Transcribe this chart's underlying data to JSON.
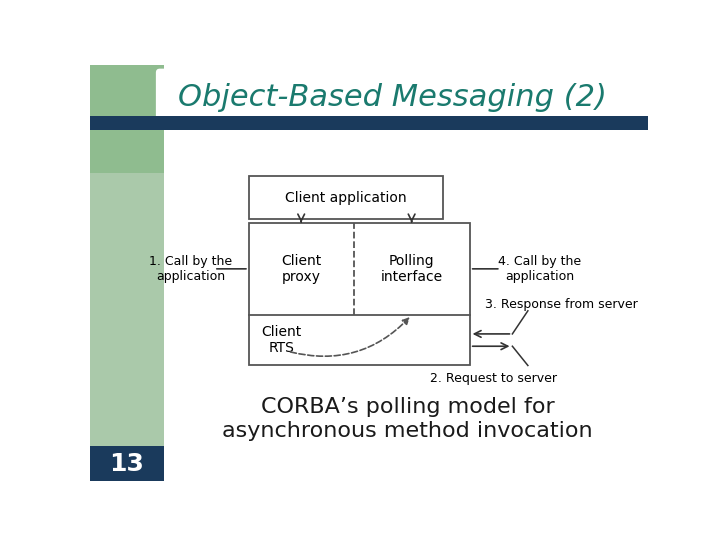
{
  "title": "Object-Based Messaging (2)",
  "title_color": "#1a7a6e",
  "title_fontsize": 22,
  "subtitle_text": "CORBA’s polling model for\nasynchronous method invocation",
  "subtitle_fontsize": 16,
  "subtitle_color": "#1a1a1a",
  "slide_number": "13",
  "slide_number_color": "#ffffff",
  "slide_number_bg": "#1a3a5c",
  "header_bar_color": "#1a3a5c",
  "left_panel_color": "#8fbc8f",
  "background_color": "#ffffff",
  "label_client_app": "Client application",
  "label_client_proxy": "Client\nproxy",
  "label_polling_iface": "Polling\ninterface",
  "label_client_rts": "Client\nRTS",
  "annotation_1": "1. Call by the\napplication",
  "annotation_4": "4. Call by the\napplication",
  "annotation_3": "3. Response from server",
  "annotation_2": "2. Request to server",
  "box_edge_color": "#555555",
  "arrow_color": "#333333",
  "dashed_color": "#555555",
  "font_family": "DejaVu Sans"
}
